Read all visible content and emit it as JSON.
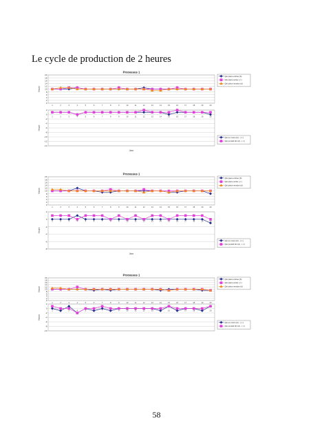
{
  "page": {
    "heading": "Le cycle de production de 2 heures",
    "page_number": "58"
  },
  "colors": {
    "entree": "#1f2a8c",
    "sortie": "#e23fd9",
    "vendue": "#f08a1e",
    "en_cours": "#1f2a8c",
    "produit_fini": "#e23fd9",
    "green_series": "#2e8b57"
  },
  "chart_data": [
    {
      "type": "line",
      "title": "Processus 1",
      "xlabel": "Jour",
      "ylabel_top": "Heure",
      "ylabel_bottom": "Heure",
      "x": [
        1,
        2,
        3,
        4,
        5,
        6,
        7,
        8,
        9,
        10,
        11,
        12,
        13,
        14,
        15,
        16,
        17,
        18,
        19,
        20
      ],
      "top": {
        "ylim": [
          0,
          20
        ],
        "yticks": [
          20,
          18,
          16,
          14,
          12,
          10,
          8,
          6,
          4,
          2,
          0
        ],
        "series": [
          {
            "name": "Qté pièce entrée (b)",
            "color_key": "entree",
            "marker": "diamond",
            "values": [
              10,
              10,
              10,
              11,
              10,
              10,
              10,
              10,
              10,
              10,
              10,
              11,
              10,
              10,
              10,
              10,
              10,
              10,
              10,
              10
            ]
          },
          {
            "name": "Qté pièce sortie ( c )",
            "color_key": "sortie",
            "marker": "square",
            "values": [
              10,
              10,
              11,
              11,
              10,
              10,
              10,
              10,
              11,
              10,
              10,
              10,
              10,
              10,
              10,
              11,
              10,
              10,
              10,
              10
            ]
          },
          {
            "name": "Qté pièce vendue (d)",
            "color_key": "vendue",
            "marker": "triangle",
            "values": [
              10,
              11,
              11,
              10,
              10,
              10,
              10,
              10,
              10,
              10,
              10,
              10,
              9,
              9,
              10,
              10,
              10,
              10,
              10,
              10
            ]
          }
        ]
      },
      "bottom": {
        "ylim": [
          -14,
          2
        ],
        "yticks": [
          2,
          0,
          -2,
          -4,
          -6,
          -8,
          -10,
          -12,
          -14
        ],
        "series": [
          {
            "name": "Qté en cours (b) - ( c )",
            "color_key": "en_cours",
            "marker": "diamond",
            "values": [
              1,
              1,
              1,
              0,
              1,
              1,
              1,
              1,
              1,
              1,
              1,
              1,
              1,
              1,
              0,
              1,
              1,
              1,
              1,
              0
            ]
          },
          {
            "name": "Qté produit fini (d) - ( c )",
            "color_key": "produit_fini",
            "marker": "square",
            "values": [
              1,
              1,
              1,
              0,
              1,
              1,
              1,
              1,
              1,
              1,
              1,
              2,
              1,
              1,
              1,
              2,
              1,
              1,
              1,
              1
            ]
          }
        ]
      }
    },
    {
      "type": "line",
      "title": "Processus 1",
      "xlabel": "Jour",
      "ylabel_top": "Heure",
      "ylabel_bottom": "Heure",
      "x": [
        1,
        2,
        3,
        4,
        5,
        6,
        7,
        8,
        9,
        10,
        11,
        12,
        13,
        14,
        15,
        16,
        17,
        18,
        19,
        20
      ],
      "top": {
        "ylim": [
          0,
          20
        ],
        "yticks": [
          20,
          18,
          16,
          14,
          12,
          10,
          8,
          6,
          4,
          2,
          0
        ],
        "series": [
          {
            "name": "Qté pièce entrée (b)",
            "color_key": "entree",
            "marker": "diamond",
            "values": [
              10,
              10,
              10,
              12,
              10,
              10,
              9,
              9,
              10,
              10,
              10,
              10,
              10,
              10,
              9,
              9,
              10,
              10,
              10,
              8
            ]
          },
          {
            "name": "Qté pièce sortie ( c )",
            "color_key": "sortie",
            "marker": "square",
            "values": [
              10,
              10,
              10,
              10,
              10,
              10,
              10,
              11,
              10,
              10,
              10,
              11,
              10,
              10,
              10,
              10,
              10,
              10,
              10,
              10
            ]
          },
          {
            "name": "Qté pièce vendue (d)",
            "color_key": "vendue",
            "marker": "triangle",
            "values": [
              11,
              11,
              10,
              10,
              10,
              10,
              10,
              10,
              10,
              10,
              10,
              9,
              10,
              10,
              9,
              10,
              10,
              10,
              10,
              10
            ]
          }
        ]
      },
      "bottom": {
        "ylim": [
          -8,
          2
        ],
        "yticks": [
          2,
          0,
          -2,
          -4,
          -6,
          -8
        ],
        "series": [
          {
            "name": "Qté en cours (b) - ( c )",
            "color_key": "en_cours",
            "marker": "diamond",
            "values": [
              0,
              0,
              0,
              1,
              0,
              0,
              0,
              0,
              0,
              0,
              0,
              0,
              0,
              0,
              0,
              0,
              0,
              0,
              0,
              -1
            ]
          },
          {
            "name": "Qté produit fini (d) - ( c )",
            "color_key": "produit_fini",
            "marker": "square",
            "values": [
              1,
              1,
              1,
              0,
              1,
              1,
              1,
              0,
              1,
              0,
              1,
              0,
              1,
              1,
              0,
              1,
              1,
              1,
              1,
              0
            ]
          }
        ]
      }
    },
    {
      "type": "line",
      "title": "Processus 1",
      "xlabel": "",
      "ylabel_top": "Heure",
      "ylabel_bottom": "Heure",
      "x": [
        1,
        2,
        3,
        4,
        5,
        6,
        7,
        8,
        9,
        10,
        11,
        12,
        13,
        14,
        15,
        16,
        17,
        18,
        19,
        20
      ],
      "top": {
        "ylim": [
          0,
          20
        ],
        "yticks": [
          20,
          18,
          16,
          14,
          12,
          10,
          8,
          6,
          4,
          2,
          0
        ],
        "series": [
          {
            "name": "Qté pièce entrée (b)",
            "color_key": "entree",
            "marker": "diamond",
            "values": [
              10,
              10,
              10,
              10,
              10,
              9,
              10,
              9,
              10,
              10,
              10,
              10,
              10,
              9,
              10,
              10,
              10,
              10,
              9,
              9
            ]
          },
          {
            "name": "Qté pièce sortie ( c )",
            "color_key": "sortie",
            "marker": "square",
            "values": [
              10,
              10,
              10,
              12,
              10,
              10,
              10,
              10,
              10,
              10,
              10,
              10,
              10,
              10,
              9,
              10,
              10,
              10,
              10,
              9
            ]
          },
          {
            "name": "Qté pièce vendue (d)",
            "color_key": "vendue",
            "marker": "triangle",
            "values": [
              11,
              11,
              10,
              10,
              10,
              10,
              10,
              10,
              10,
              10,
              10,
              10,
              10,
              10,
              9,
              10,
              10,
              10,
              10,
              9
            ]
          }
        ]
      },
      "bottom": {
        "ylim": [
          -10,
          2
        ],
        "yticks": [
          2,
          0,
          -2,
          -4,
          -6,
          -8,
          -10
        ],
        "series": [
          {
            "name": "Qté en cours (b) - ( c )",
            "color_key": "en_cours",
            "marker": "diamond",
            "values": [
              0,
              -1,
              1,
              -2,
              0,
              -1,
              0,
              -1,
              0,
              0,
              0,
              0,
              0,
              -1,
              1,
              -1,
              0,
              0,
              -1,
              1
            ]
          },
          {
            "name": "Qté produit fini (d) - ( c )",
            "color_key": "produit_fini",
            "marker": "square",
            "values": [
              1,
              0,
              0,
              -2,
              0,
              0,
              1,
              0,
              0,
              0,
              0,
              0,
              0,
              0,
              1,
              0,
              0,
              0,
              0,
              1
            ]
          }
        ]
      }
    }
  ]
}
